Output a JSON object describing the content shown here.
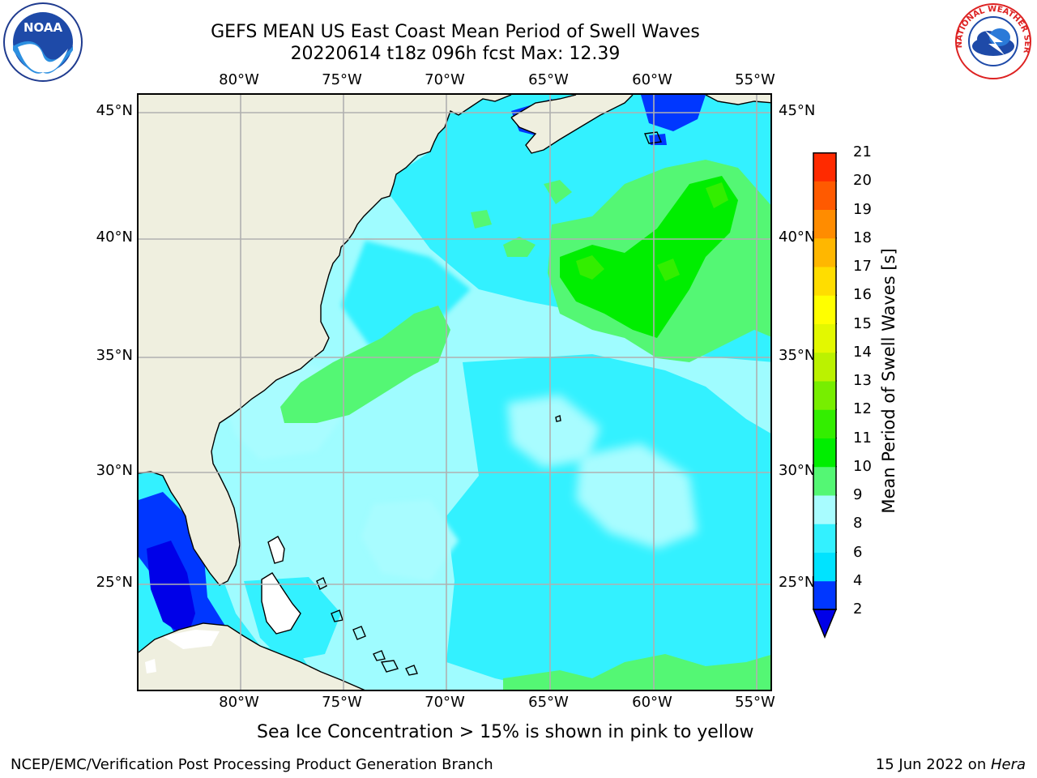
{
  "title": {
    "line1": "GEFS MEAN US East Coast Mean Period of Swell Waves",
    "line2": "20220614 t18z 096h fcst   Max: 12.39"
  },
  "axes": {
    "lon_labels": [
      "80°W",
      "75°W",
      "70°W",
      "65°W",
      "60°W",
      "55°W"
    ],
    "lat_labels": [
      "45°N",
      "40°N",
      "35°N",
      "30°N",
      "25°N"
    ]
  },
  "colorbar": {
    "title": "Mean Period of Swell Waves [s]",
    "labels": [
      "2",
      "4",
      "6",
      "8",
      "9",
      "10",
      "11",
      "12",
      "13",
      "14",
      "15",
      "16",
      "17",
      "18",
      "19",
      "20",
      "21"
    ],
    "colors": [
      "#0037ff",
      "#00e3ff",
      "#33f1ff",
      "#a8fcff",
      "#54f774",
      "#00ee00",
      "#33ee00",
      "#77ee00",
      "#bbf200",
      "#e3f800",
      "#ffff00",
      "#ffdd00",
      "#ffb700",
      "#ff8c00",
      "#ff5a00",
      "#ff2a00",
      "#ff0000"
    ],
    "under_color": "#0000e8"
  },
  "colors": {
    "land": "#efefdf",
    "ocean_base": "#9ffcff",
    "grid": "#b0b0b0"
  },
  "logos": {
    "noaa": "NOAA",
    "nws": "NATIONAL WEATHER SERVICE"
  },
  "caption": "Sea Ice Concentration > 15% is shown in pink to yellow",
  "footer": {
    "left": "NCEP/EMC/Verification Post Processing Product Generation Branch",
    "date": "15 Jun 2022 on ",
    "machine": "Hera"
  }
}
